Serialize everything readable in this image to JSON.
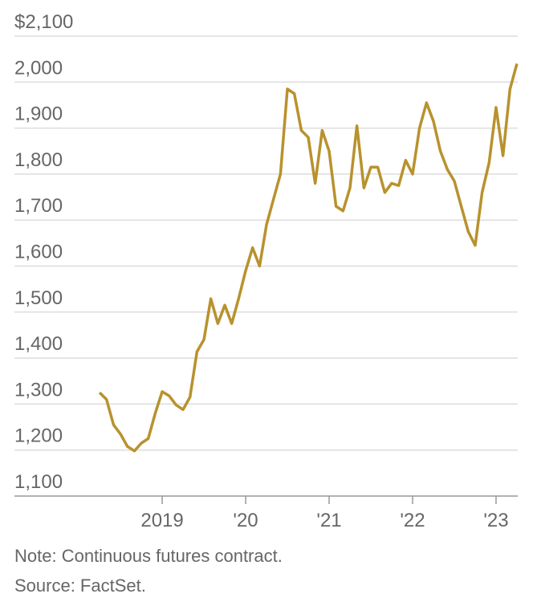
{
  "chart_data": {
    "type": "line",
    "note": "Note: Continuous futures contract.",
    "source": "Source: FactSet.",
    "x": [
      2018.25,
      2018.333,
      2018.417,
      2018.5,
      2018.583,
      2018.667,
      2018.75,
      2018.833,
      2018.917,
      2019,
      2019.083,
      2019.167,
      2019.25,
      2019.333,
      2019.417,
      2019.5,
      2019.583,
      2019.667,
      2019.75,
      2019.833,
      2019.917,
      2020,
      2020.083,
      2020.167,
      2020.25,
      2020.333,
      2020.417,
      2020.5,
      2020.583,
      2020.667,
      2020.75,
      2020.833,
      2020.917,
      2021,
      2021.083,
      2021.167,
      2021.25,
      2021.333,
      2021.417,
      2021.5,
      2021.583,
      2021.667,
      2021.75,
      2021.833,
      2021.917,
      2022,
      2022.083,
      2022.167,
      2022.25,
      2022.333,
      2022.417,
      2022.5,
      2022.583,
      2022.667,
      2022.75,
      2022.833,
      2022.917,
      2023,
      2023.083,
      2023.167,
      2023.25
    ],
    "series": [
      {
        "color": "#b8922e",
        "values": [
          1325,
          1310,
          1255,
          1235,
          1208,
          1198,
          1215,
          1225,
          1280,
          1327,
          1318,
          1298,
          1288,
          1315,
          1414,
          1440,
          1529,
          1475,
          1515,
          1475,
          1530,
          1590,
          1640,
          1600,
          1690,
          1745,
          1800,
          1985,
          1975,
          1895,
          1880,
          1780,
          1895,
          1850,
          1730,
          1720,
          1770,
          1905,
          1770,
          1815,
          1815,
          1760,
          1780,
          1775,
          1830,
          1800,
          1900,
          1955,
          1915,
          1850,
          1810,
          1785,
          1730,
          1675,
          1645,
          1760,
          1825,
          1945,
          1840,
          1985,
          2040
        ]
      }
    ],
    "xlim": [
      2017.23,
      2023.26
    ],
    "xticks": [
      {
        "value": 2019,
        "label": "2019"
      },
      {
        "value": 2020,
        "label": "'20"
      },
      {
        "value": 2021,
        "label": "'21"
      },
      {
        "value": 2022,
        "label": "'22"
      },
      {
        "value": 2023,
        "label": "'23"
      }
    ],
    "ylim": [
      1100,
      2100
    ],
    "yticks": [
      {
        "value": 1100,
        "label": "1,100"
      },
      {
        "value": 1200,
        "label": "1,200"
      },
      {
        "value": 1300,
        "label": "1,300"
      },
      {
        "value": 1400,
        "label": "1,400"
      },
      {
        "value": 1500,
        "label": "1,500"
      },
      {
        "value": 1600,
        "label": "1,600"
      },
      {
        "value": 1700,
        "label": "1,700"
      },
      {
        "value": 1800,
        "label": "1,800"
      },
      {
        "value": 1900,
        "label": "1,900"
      },
      {
        "value": 2000,
        "label": "2,000"
      },
      {
        "value": 2100,
        "label": "$2,100"
      }
    ],
    "grid": true
  }
}
